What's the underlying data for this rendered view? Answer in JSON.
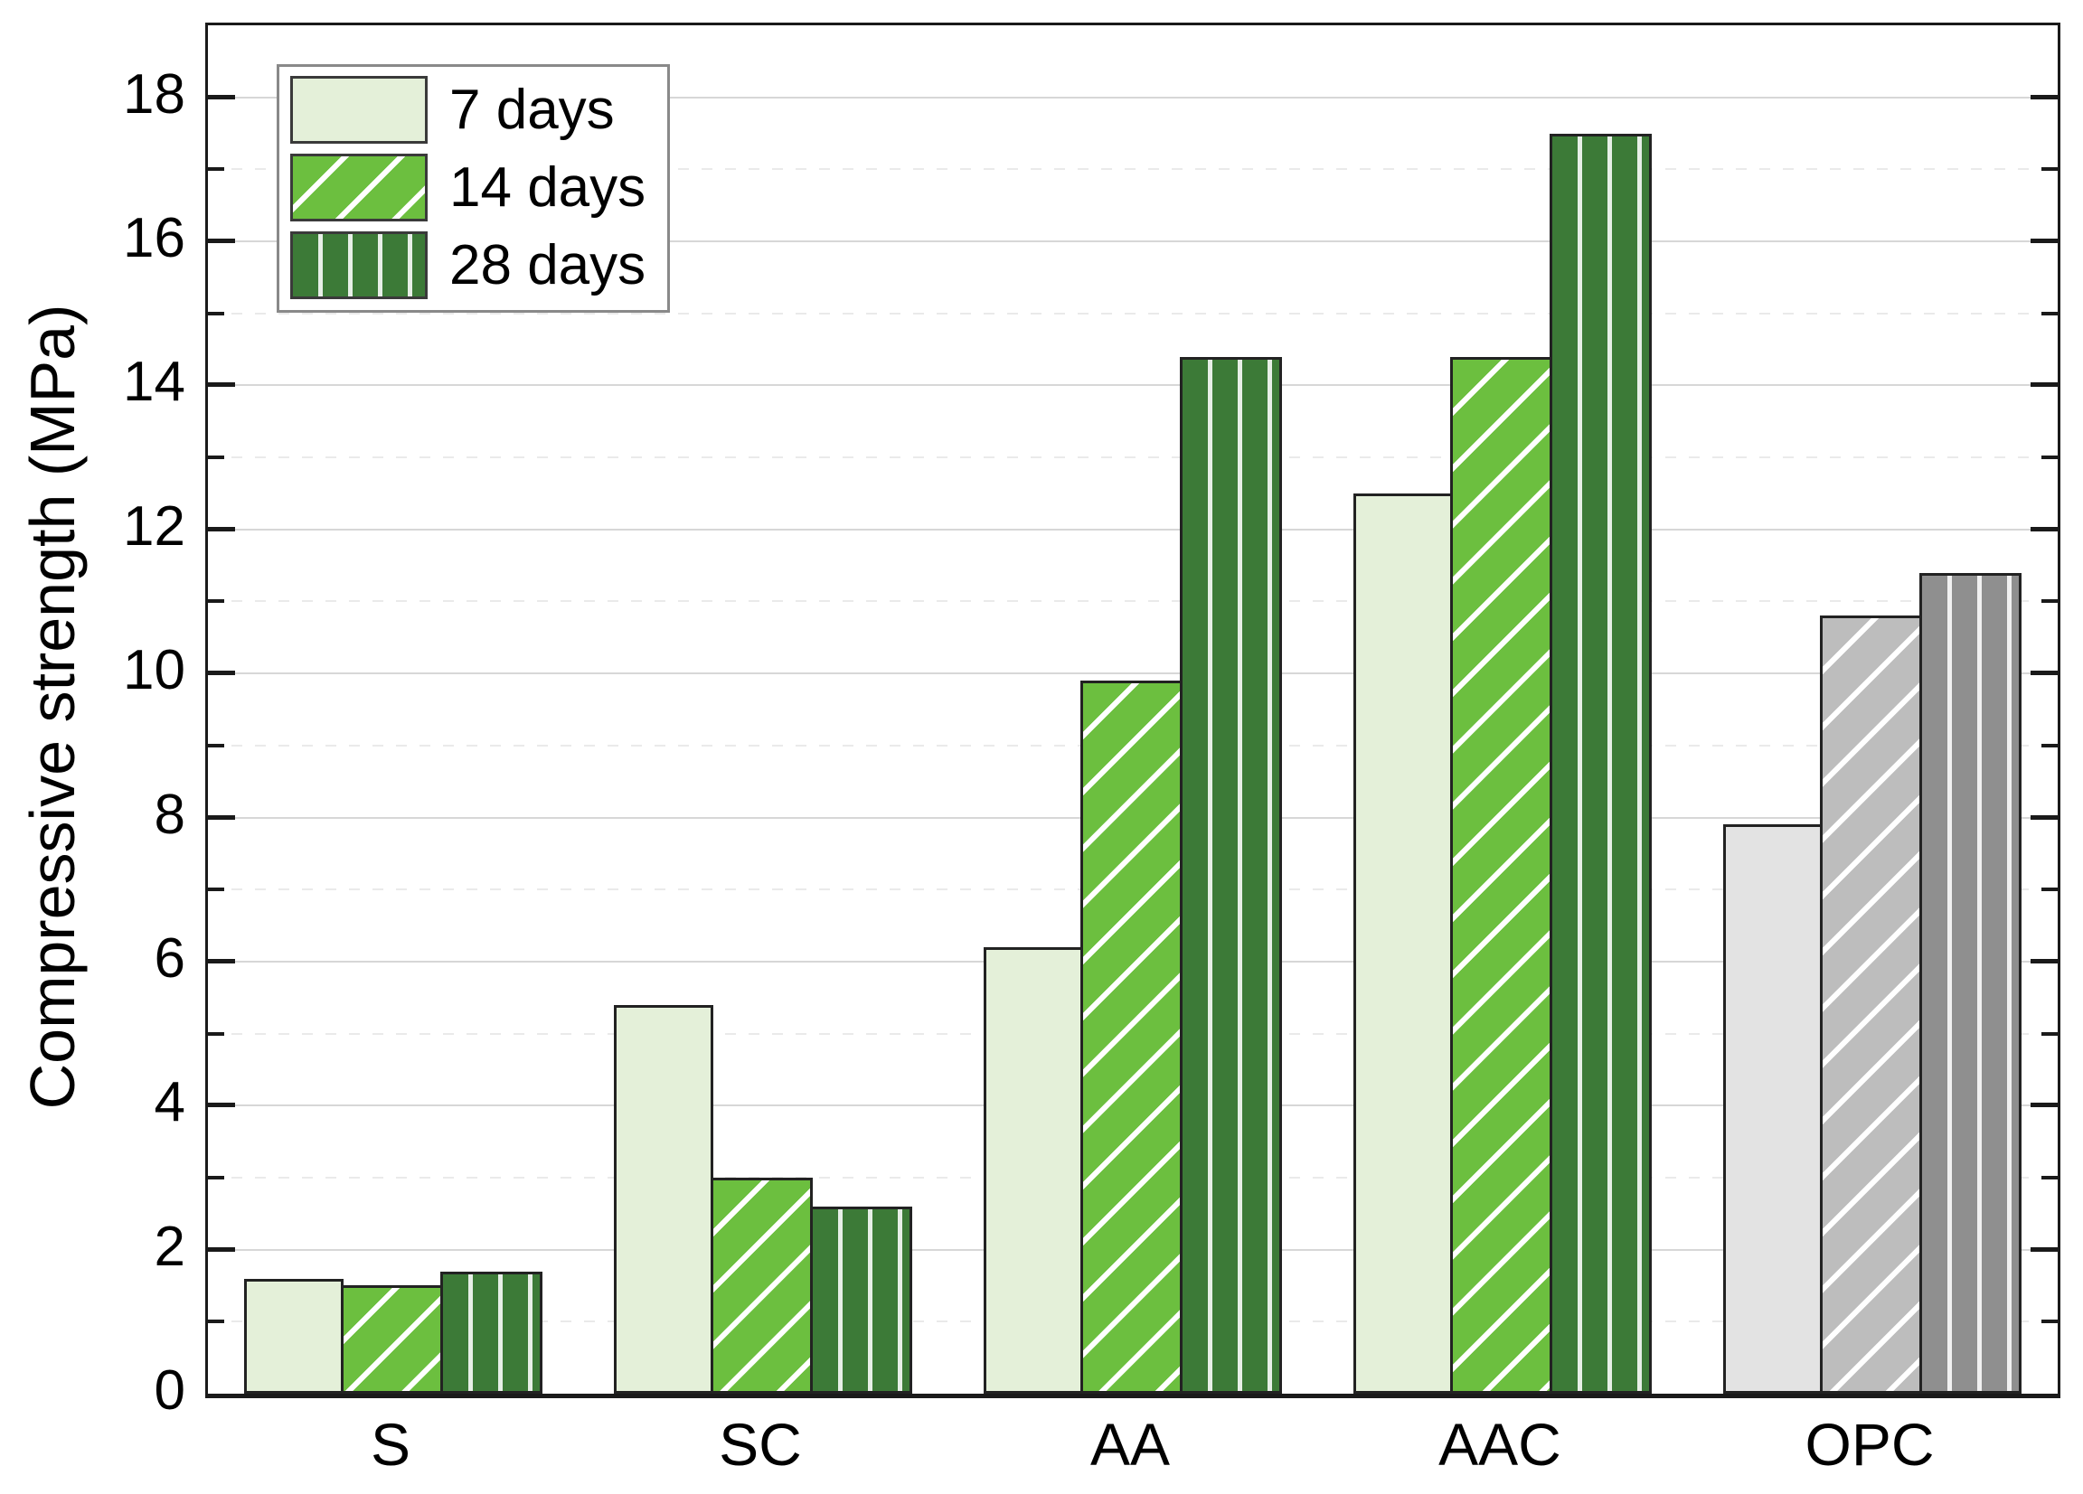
{
  "chart_data": {
    "type": "bar",
    "title": "",
    "ylabel": "Compressive strength (MPa)",
    "xlabel": "",
    "ylim": [
      0,
      19
    ],
    "yticks_major": [
      0,
      2,
      4,
      6,
      8,
      10,
      12,
      14,
      16,
      18
    ],
    "yticks_minor": [
      1,
      3,
      5,
      7,
      9,
      11,
      13,
      15,
      17
    ],
    "grid": {
      "major": "solid",
      "minor": "dashed"
    },
    "legend_position": "top-left",
    "categories": [
      "S",
      "SC",
      "AA",
      "AAC",
      "OPC"
    ],
    "gray_category": "OPC",
    "series": [
      {
        "name": "7 days",
        "pattern": "solid",
        "color": "#e4f0d9",
        "gray_color": "#e3e3e3",
        "values": [
          1.6,
          5.4,
          6.2,
          12.5,
          7.9
        ]
      },
      {
        "name": "14 days",
        "pattern": "diagonal-hatch",
        "color": "#6cbf3f",
        "gray_color": "#bdbdbd",
        "values": [
          1.5,
          3.0,
          9.9,
          14.4,
          10.8
        ]
      },
      {
        "name": "28 days",
        "pattern": "vertical-stripes",
        "color": "#3c7a37",
        "gray_color": "#8f8f8f",
        "values": [
          1.7,
          2.6,
          14.4,
          17.5,
          11.4
        ]
      }
    ],
    "colors": {
      "frame": "#1a1a1a",
      "grid_major": "#d7d7d7",
      "grid_minor": "#eaeaea",
      "bar_border": "#222222",
      "legend_border": "#898989",
      "text": "#000000"
    }
  },
  "legend": {
    "items": [
      "7 days",
      "14 days",
      "28 days"
    ]
  }
}
